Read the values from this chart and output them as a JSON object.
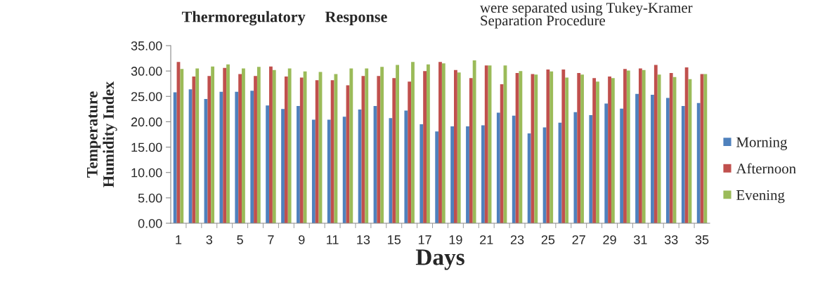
{
  "chart_data": {
    "type": "bar",
    "title": "Thermoregulatory     Response",
    "xlabel": "Days",
    "ylabel": "Temperature\nHumidity Index",
    "annotations": [
      "were separated using Tukey-Kramer\nSeparation Procedure"
    ],
    "categories": [
      "1",
      null,
      "3",
      null,
      "5",
      null,
      "7",
      null,
      "9",
      null,
      "11",
      null,
      "13",
      null,
      "15",
      null,
      "17",
      null,
      "19",
      null,
      "21",
      null,
      "23",
      null,
      "25",
      null,
      "27",
      null,
      "29",
      null,
      "31",
      null,
      "33",
      null,
      "35"
    ],
    "series": [
      {
        "name": "Morning",
        "color": "#4f81bd",
        "values": [
          25.8,
          26.4,
          24.5,
          25.9,
          25.9,
          26.1,
          23.2,
          22.5,
          23.1,
          20.4,
          20.4,
          21.0,
          22.4,
          23.1,
          20.7,
          22.2,
          19.5,
          18.1,
          19.1,
          19.1,
          19.3,
          21.8,
          21.2,
          17.7,
          18.9,
          19.8,
          21.9,
          21.3,
          23.6,
          22.6,
          25.5,
          25.3,
          24.7,
          23.1,
          23.7
        ]
      },
      {
        "name": "Afternoon",
        "color": "#c0504d",
        "values": [
          31.8,
          28.9,
          29.0,
          30.6,
          29.4,
          29.0,
          30.9,
          28.9,
          28.7,
          28.2,
          28.2,
          27.2,
          29.0,
          29.0,
          28.6,
          27.9,
          30.0,
          31.8,
          30.2,
          28.6,
          31.1,
          27.4,
          29.6,
          29.4,
          30.3,
          30.3,
          29.6,
          28.6,
          28.9,
          30.4,
          30.5,
          31.2,
          29.6,
          30.7,
          29.4
        ]
      },
      {
        "name": "Evening",
        "color": "#9bbb59",
        "values": [
          30.4,
          30.5,
          30.9,
          31.3,
          30.5,
          30.8,
          30.2,
          30.5,
          29.9,
          29.8,
          29.4,
          30.5,
          30.5,
          30.8,
          31.2,
          31.8,
          31.3,
          31.5,
          29.7,
          32.1,
          31.1,
          31.1,
          30.0,
          29.3,
          29.9,
          28.7,
          29.3,
          27.9,
          28.6,
          30.1,
          30.2,
          29.3,
          28.8,
          28.4,
          29.4
        ]
      }
    ],
    "ylim": [
      0,
      35
    ],
    "yticks": [
      {
        "value": 0,
        "label": "0.00"
      },
      {
        "value": 5,
        "label": "5.00"
      },
      {
        "value": 10,
        "label": "10.00"
      },
      {
        "value": 15,
        "label": "15.00"
      },
      {
        "value": 20,
        "label": "20.00"
      },
      {
        "value": 25,
        "label": "25.00"
      },
      {
        "value": 30,
        "label": "30.00"
      },
      {
        "value": 35,
        "label": "35.00"
      }
    ],
    "legend": "right",
    "grid": false
  }
}
